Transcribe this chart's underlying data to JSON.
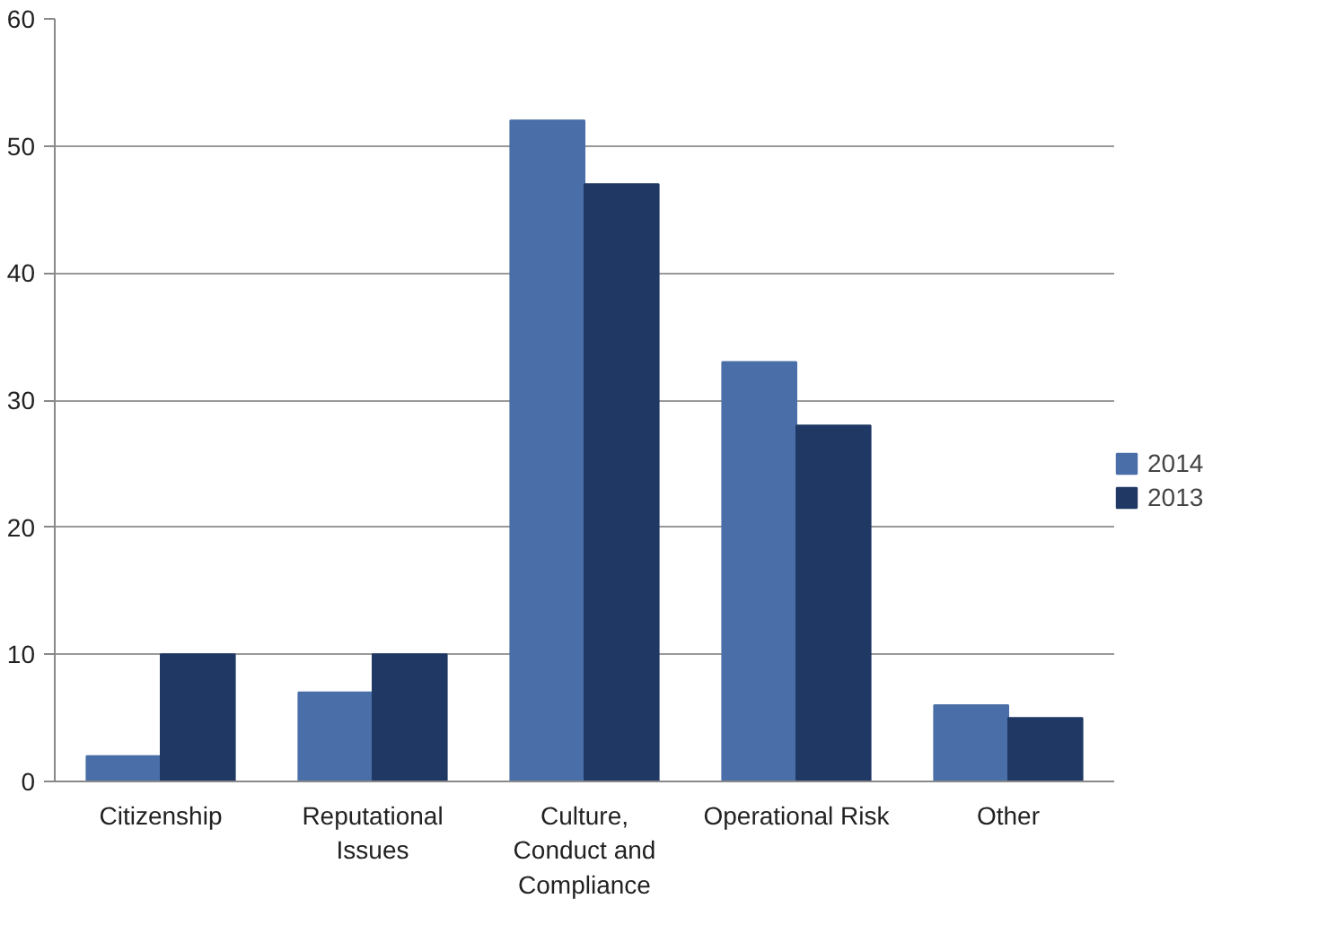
{
  "chart_data": {
    "type": "bar",
    "categories": [
      "Citizenship",
      "Reputational Issues",
      "Culture, Conduct and Compliance",
      "Operational Risk",
      "Other"
    ],
    "series": [
      {
        "name": "2014",
        "color": "#4a6ea8",
        "values": [
          2,
          7,
          52,
          33,
          6
        ]
      },
      {
        "name": "2013",
        "color": "#1f3864",
        "values": [
          10,
          10,
          47,
          28,
          5
        ]
      }
    ],
    "ylim": [
      0,
      60
    ],
    "yticks": [
      0,
      10,
      20,
      30,
      40,
      50,
      60
    ],
    "grid": "y",
    "legend": "right"
  }
}
